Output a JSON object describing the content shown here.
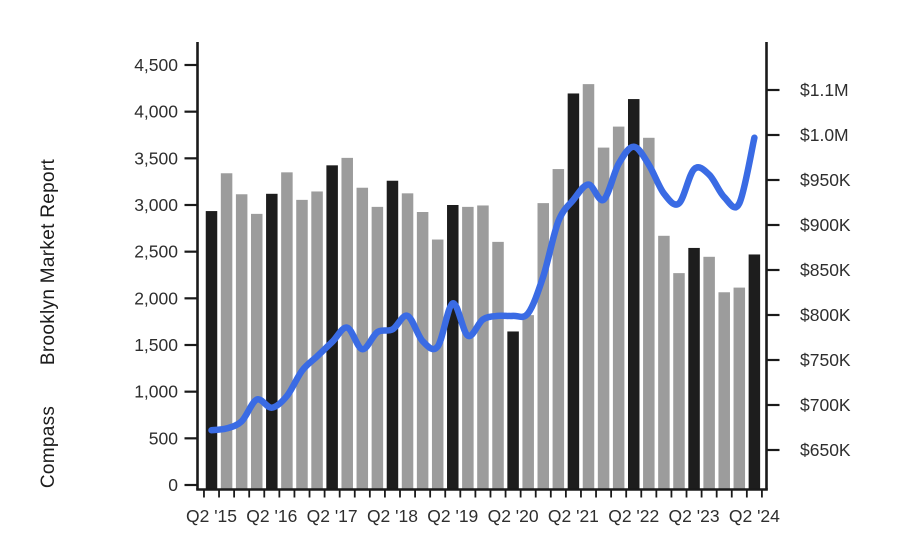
{
  "side_text": {
    "report": "Brooklyn Market Report",
    "brand": "Compass"
  },
  "colors": {
    "bar_gray": "#9c9c9c",
    "bar_black": "#1d1d1d",
    "line_blue": "#3a6be4",
    "axis": "#1a1a1a",
    "tick_label": "#2e2e2e"
  },
  "chart_data": {
    "type": "bar",
    "subtype": "combo-bar-line-dual-axis",
    "categories": [
      "Q2 '15",
      "Q3 '15",
      "Q4 '15",
      "Q1 '16",
      "Q2 '16",
      "Q3 '16",
      "Q4 '16",
      "Q1 '17",
      "Q2 '17",
      "Q3 '17",
      "Q4 '17",
      "Q1 '18",
      "Q2 '18",
      "Q3 '18",
      "Q4 '18",
      "Q1 '19",
      "Q2 '19",
      "Q3 '19",
      "Q4 '19",
      "Q1 '20",
      "Q2 '20",
      "Q3 '20",
      "Q4 '20",
      "Q1 '21",
      "Q2 '21",
      "Q3 '21",
      "Q4 '21",
      "Q1 '22",
      "Q2 '22",
      "Q3 '22",
      "Q4 '22",
      "Q1 '23",
      "Q2 '23",
      "Q3 '23",
      "Q4 '23",
      "Q1 '24",
      "Q2 '24"
    ],
    "series": [
      {
        "name": "quarterly-bars",
        "type": "bar",
        "axis": "left",
        "values": [
          2935,
          3340,
          3115,
          2905,
          3120,
          3350,
          3055,
          3145,
          3425,
          3505,
          3185,
          2980,
          3260,
          3125,
          2925,
          2630,
          3000,
          2980,
          2995,
          2605,
          1645,
          1820,
          3020,
          3385,
          4195,
          4295,
          3615,
          3840,
          4135,
          3720,
          2670,
          2270,
          2540,
          2445,
          2065,
          2115,
          2470
        ],
        "highlight_rule": "every Q2 bar is black, others gray"
      },
      {
        "name": "price-line",
        "type": "line",
        "axis": "right",
        "values_thousands": [
          672,
          674,
          682,
          706,
          697,
          710,
          738,
          754,
          770,
          786,
          762,
          781,
          784,
          799,
          771,
          765,
          813,
          777,
          795,
          799,
          799,
          802,
          843,
          904,
          928,
          945,
          928,
          968,
          987,
          967,
          935,
          924,
          962,
          956,
          931,
          924,
          997
        ]
      }
    ],
    "left_axis": {
      "min": 0,
      "max": 4500,
      "step": 500,
      "tick_labels": [
        "0",
        "500",
        "1,000",
        "1,500",
        "2,000",
        "2,500",
        "3,000",
        "3,500",
        "4,000",
        "4,500"
      ],
      "tick_values": [
        0,
        500,
        1000,
        1500,
        2000,
        2500,
        3000,
        3500,
        4000,
        4500
      ]
    },
    "right_axis": {
      "tick_labels": [
        "$650K",
        "$700K",
        "$750K",
        "$800K",
        "$850K",
        "$900K",
        "$950K",
        "$1.0M",
        "$1.1M"
      ],
      "tick_values_thousands": [
        650,
        700,
        750,
        800,
        850,
        900,
        950,
        1000,
        1050
      ]
    },
    "x_tick_labels": [
      "Q2 '15",
      "Q2 '16",
      "Q2 '17",
      "Q2 '18",
      "Q2 '19",
      "Q2 '20",
      "Q2 '21",
      "Q2 '22",
      "Q2 '23",
      "Q2 '24"
    ],
    "grid": false,
    "legend": "none"
  }
}
